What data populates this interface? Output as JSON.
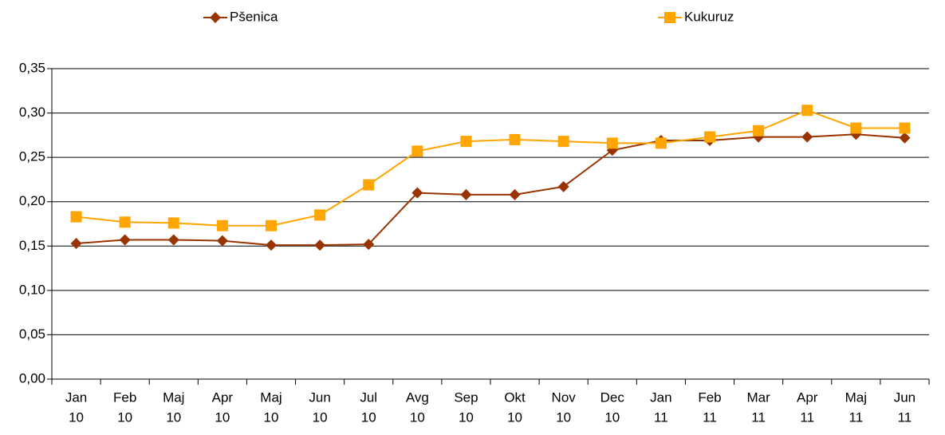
{
  "chart_data": {
    "type": "line",
    "categories": [
      [
        "Jan",
        "10"
      ],
      [
        "Feb",
        "10"
      ],
      [
        "Maj",
        "10"
      ],
      [
        "Apr",
        "10"
      ],
      [
        "Maj",
        "10"
      ],
      [
        "Jun",
        "10"
      ],
      [
        "Jul",
        "10"
      ],
      [
        "Avg",
        "10"
      ],
      [
        "Sep",
        "10"
      ],
      [
        "Okt",
        "10"
      ],
      [
        "Nov",
        "10"
      ],
      [
        "Dec",
        "10"
      ],
      [
        "Jan",
        "11"
      ],
      [
        "Feb",
        "11"
      ],
      [
        "Mar",
        "11"
      ],
      [
        "Apr",
        "11"
      ],
      [
        "Maj",
        "11"
      ],
      [
        "Jun",
        "11"
      ]
    ],
    "series": [
      {
        "name": "Pšenica",
        "color": "#993300",
        "marker": "diamond",
        "values": [
          0.153,
          0.157,
          0.157,
          0.156,
          0.151,
          0.151,
          0.152,
          0.21,
          0.208,
          0.208,
          0.217,
          0.258,
          0.269,
          0.269,
          0.273,
          0.273,
          0.276,
          0.272
        ]
      },
      {
        "name": "Kukuruz",
        "color": "#ffa500",
        "marker": "square",
        "values": [
          0.183,
          0.177,
          0.176,
          0.173,
          0.173,
          0.185,
          0.219,
          0.257,
          0.268,
          0.27,
          0.268,
          0.266,
          0.266,
          0.273,
          0.28,
          0.303,
          0.283,
          0.283
        ]
      }
    ],
    "ylim": [
      0,
      0.35
    ],
    "yticks": [
      {
        "value": 0,
        "label": "0,00"
      },
      {
        "value": 0.05,
        "label": "0,05"
      },
      {
        "value": 0.1,
        "label": "0,10"
      },
      {
        "value": 0.15,
        "label": "0,15"
      },
      {
        "value": 0.2,
        "label": "0,20"
      },
      {
        "value": 0.25,
        "label": "0,25"
      },
      {
        "value": 0.3,
        "label": "0,30"
      },
      {
        "value": 0.35,
        "label": "0,35"
      }
    ],
    "grid": true,
    "legend": "top"
  }
}
